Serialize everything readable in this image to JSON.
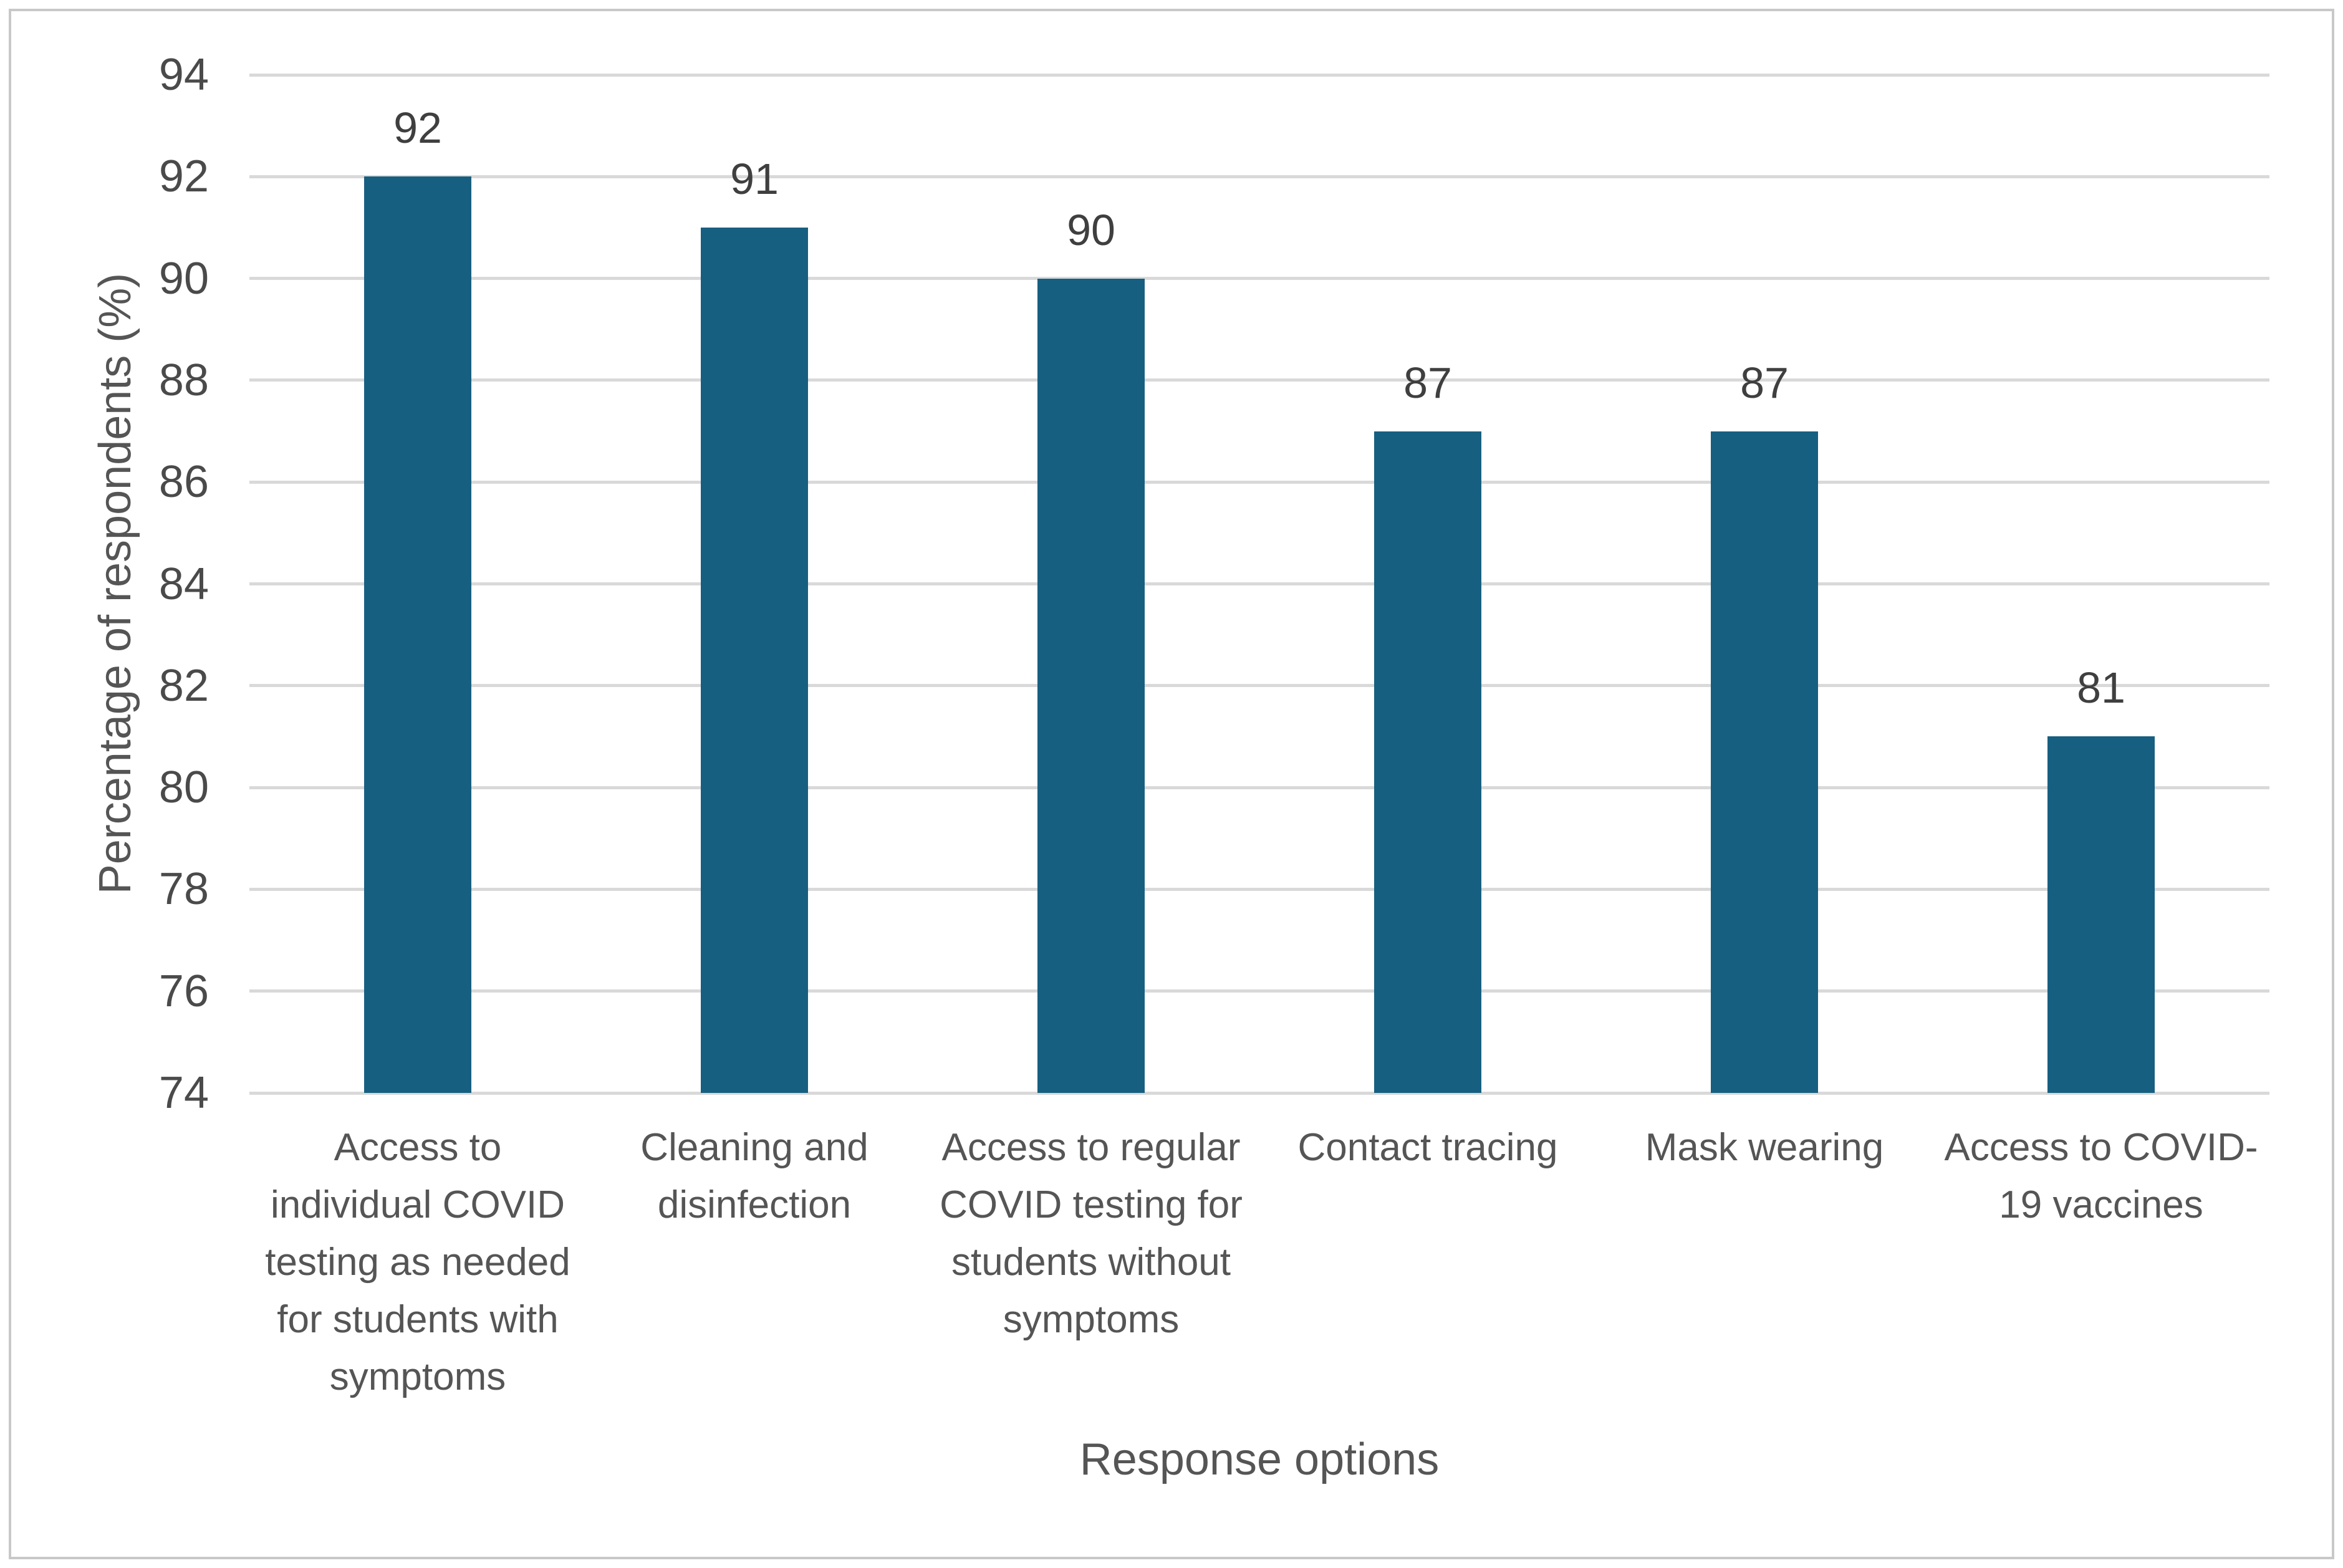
{
  "figure": {
    "background_color": "#ffffff",
    "border_color": "#c8c8c8"
  },
  "chart_data": {
    "type": "bar",
    "title": "",
    "categories": [
      "Access to\nindividual COVID\ntesting as needed\nfor students with\nsymptoms",
      "Cleaning and\ndisinfection",
      "Access to regular\nCOVID testing for\nstudents without\nsymptoms",
      "Contact tracing",
      "Mask wearing",
      "Access to COVID-\n19 vaccines"
    ],
    "values": [
      92,
      91,
      90,
      87,
      87,
      81
    ],
    "data_labels": [
      "92",
      "91",
      "90",
      "87",
      "87",
      "81"
    ],
    "xlabel": "Response options",
    "ylabel": "Percentage of respondents (%)",
    "ylim": [
      74,
      94
    ],
    "ytick_step": 2,
    "yticks": [
      "94",
      "92",
      "90",
      "88",
      "86",
      "84",
      "82",
      "80",
      "78",
      "76",
      "74"
    ],
    "grid": true,
    "legend": false,
    "bar_color": "#175f80",
    "gridline_color": "#d9d9d9",
    "tick_label_color": "#4a4a4a",
    "data_label_color": "#3f3f3f",
    "category_label_color": "#555555",
    "axis_title_color": "#555555"
  }
}
